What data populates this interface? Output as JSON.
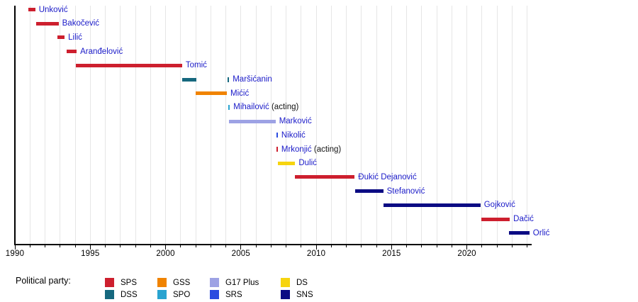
{
  "chart_data": {
    "type": "timeline-bar",
    "description": "Timeline of office holders by political party, 1990-2024",
    "x_axis": {
      "min": 1990,
      "max": 2024.3,
      "labeled_ticks": [
        1990,
        1995,
        2000,
        2005,
        2010,
        2015,
        2020
      ],
      "minor_tick_interval": 1,
      "gridlines": true
    },
    "party_colors": {
      "SPS": "#cd1f2e",
      "DSS": "#16687e",
      "GSS": "#f08300",
      "SPO": "#29a3d0",
      "G17 Plus": "#9da2e4",
      "SRS": "#2a4be0",
      "DS": "#f6d40f",
      "SNS": "#0b0b83"
    },
    "rows": [
      {
        "name": "Unković",
        "party": "SPS",
        "segments": [
          [
            1990.9,
            1991.35
          ]
        ]
      },
      {
        "name": "Bakočević",
        "party": "SPS",
        "segments": [
          [
            1991.4,
            1992.9
          ]
        ]
      },
      {
        "name": "Lilić",
        "party": "SPS",
        "segments": [
          [
            1992.8,
            1993.3
          ]
        ]
      },
      {
        "name": "Aranđelović",
        "party": "SPS",
        "segments": [
          [
            1993.45,
            1994.1
          ]
        ]
      },
      {
        "name": "Tomić",
        "party": "SPS",
        "segments": [
          [
            1994.05,
            2001.1
          ]
        ]
      },
      {
        "name": "Maršićanin",
        "party": "DSS",
        "segments": [
          [
            2001.1,
            2002.05
          ],
          [
            2004.12,
            2004.22
          ]
        ]
      },
      {
        "name": "Mićić",
        "party": "GSS",
        "segments": [
          [
            2002.0,
            2004.07
          ]
        ]
      },
      {
        "name": "Mihailović",
        "suffix": " (acting)",
        "party": "SPO",
        "segments": [
          [
            2004.17,
            2004.27
          ]
        ]
      },
      {
        "name": "Marković",
        "party": "G17 Plus",
        "segments": [
          [
            2004.2,
            2007.3
          ]
        ]
      },
      {
        "name": "Nikolić",
        "party": "SRS",
        "segments": [
          [
            2007.35,
            2007.45
          ]
        ]
      },
      {
        "name": "Mrkonjić",
        "suffix": " (acting)",
        "party": "SPS",
        "segments": [
          [
            2007.35,
            2007.45
          ]
        ]
      },
      {
        "name": "Dulić",
        "party": "DS",
        "segments": [
          [
            2007.45,
            2008.6
          ]
        ]
      },
      {
        "name": "Đukić Dejanović",
        "party": "SPS",
        "segments": [
          [
            2008.6,
            2012.55
          ]
        ]
      },
      {
        "name": "Stefanović",
        "party": "SNS",
        "segments": [
          [
            2012.6,
            2014.45
          ]
        ]
      },
      {
        "name": "Gojković",
        "party": "SNS",
        "segments": [
          [
            2014.45,
            2020.9
          ]
        ]
      },
      {
        "name": "Dačić",
        "party": "SPS",
        "segments": [
          [
            2020.95,
            2022.85
          ]
        ]
      },
      {
        "name": "Orlić",
        "party": "SNS",
        "segments": [
          [
            2022.8,
            2024.15
          ]
        ]
      }
    ]
  },
  "legend": {
    "title": "Political party:",
    "items": [
      {
        "label": "SPS",
        "row": 0,
        "col": 0
      },
      {
        "label": "GSS",
        "row": 0,
        "col": 1
      },
      {
        "label": "G17 Plus",
        "row": 0,
        "col": 2
      },
      {
        "label": "DS",
        "row": 0,
        "col": 3
      },
      {
        "label": "DSS",
        "row": 1,
        "col": 0
      },
      {
        "label": "SPO",
        "row": 1,
        "col": 1
      },
      {
        "label": "SRS",
        "row": 1,
        "col": 2
      },
      {
        "label": "SNS",
        "row": 1,
        "col": 3
      }
    ]
  }
}
